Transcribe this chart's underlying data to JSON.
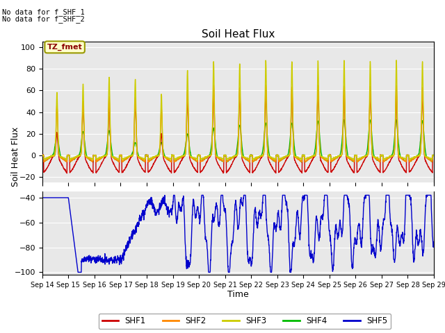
{
  "title": "Soil Heat Flux",
  "xlabel": "Time",
  "ylabel": "Soil Heat Flux",
  "annotation1": "No data for f_SHF_1",
  "annotation2": "No data for f_SHF_2",
  "tz_label": "TZ_fmet",
  "upper_ylim": [
    -25,
    105
  ],
  "lower_ylim": [
    -102,
    -35
  ],
  "upper_yticks": [
    -20,
    0,
    20,
    40,
    60,
    80,
    100
  ],
  "lower_yticks": [
    -100,
    -80,
    -60,
    -40
  ],
  "x_labels": [
    "Sep 14",
    "Sep 15",
    "Sep 16",
    "Sep 17",
    "Sep 18",
    "Sep 19",
    "Sep 20",
    "Sep 21",
    "Sep 22",
    "Sep 23",
    "Sep 24",
    "Sep 25",
    "Sep 26",
    "Sep 27",
    "Sep 28",
    "Sep 29"
  ],
  "bg_color": "#e8e8e8",
  "colors": {
    "SHF1": "#cc0000",
    "SHF2": "#ff8800",
    "SHF3": "#cccc00",
    "SHF4": "#00bb00",
    "SHF5": "#0000cc"
  }
}
